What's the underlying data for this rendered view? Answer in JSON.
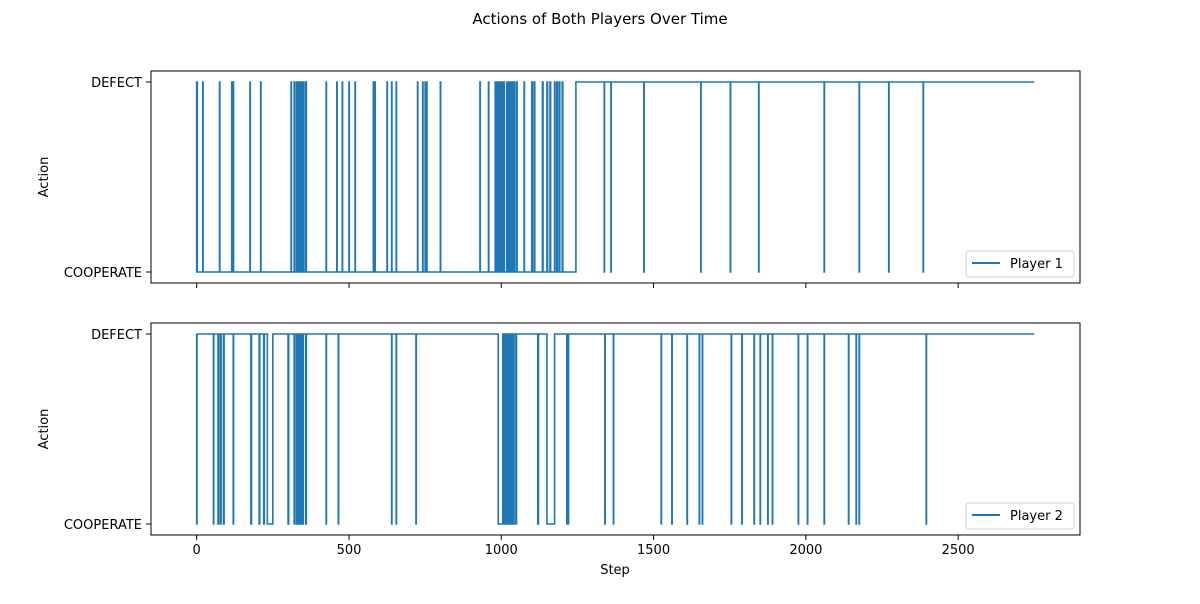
{
  "figure": {
    "title": "Actions of Both Players Over Time"
  },
  "colors": {
    "series": "#1f77b4",
    "background": "#ffffff",
    "axes": "#000000"
  },
  "chart_data": [
    {
      "type": "line",
      "title": "",
      "xlabel": "",
      "ylabel": "Action",
      "xlim": [
        -150,
        2900
      ],
      "x_ticks": [
        0,
        500,
        1000,
        1500,
        2000,
        2500
      ],
      "x_tick_labels_visible": false,
      "y_categories": [
        "COOPERATE",
        "DEFECT"
      ],
      "legend": {
        "entries": [
          "Player 1"
        ],
        "placement": "lower-right"
      },
      "grid": false,
      "series": [
        {
          "name": "Player 1",
          "drawstyle": "steps",
          "x_end": 2750,
          "initial": 1,
          "transitions": [
            [
              0,
              0
            ],
            [
              1,
              1
            ],
            [
              2,
              0
            ],
            [
              20,
              1
            ],
            [
              21,
              0
            ],
            [
              75,
              1
            ],
            [
              76,
              0
            ],
            [
              115,
              1
            ],
            [
              116,
              0
            ],
            [
              120,
              1
            ],
            [
              121,
              0
            ],
            [
              175,
              1
            ],
            [
              176,
              0
            ],
            [
              210,
              1
            ],
            [
              211,
              0
            ],
            [
              310,
              1
            ],
            [
              311,
              0
            ],
            [
              320,
              1
            ],
            [
              322,
              0
            ],
            [
              328,
              1
            ],
            [
              330,
              0
            ],
            [
              335,
              1
            ],
            [
              337,
              0
            ],
            [
              340,
              1
            ],
            [
              342,
              0
            ],
            [
              345,
              1
            ],
            [
              347,
              0
            ],
            [
              350,
              1
            ],
            [
              352,
              0
            ],
            [
              358,
              1
            ],
            [
              360,
              0
            ],
            [
              425,
              1
            ],
            [
              426,
              0
            ],
            [
              460,
              1
            ],
            [
              461,
              0
            ],
            [
              478,
              1
            ],
            [
              479,
              0
            ],
            [
              500,
              1
            ],
            [
              501,
              0
            ],
            [
              520,
              1
            ],
            [
              521,
              0
            ],
            [
              580,
              1
            ],
            [
              581,
              0
            ],
            [
              585,
              1
            ],
            [
              586,
              0
            ],
            [
              625,
              1
            ],
            [
              626,
              0
            ],
            [
              640,
              1
            ],
            [
              641,
              0
            ],
            [
              655,
              1
            ],
            [
              656,
              0
            ],
            [
              725,
              1
            ],
            [
              726,
              0
            ],
            [
              742,
              1
            ],
            [
              743,
              0
            ],
            [
              750,
              1
            ],
            [
              751,
              0
            ],
            [
              755,
              1
            ],
            [
              756,
              0
            ],
            [
              800,
              1
            ],
            [
              801,
              0
            ],
            [
              930,
              1
            ],
            [
              931,
              0
            ],
            [
              958,
              1
            ],
            [
              959,
              0
            ],
            [
              980,
              1
            ],
            [
              982,
              0
            ],
            [
              986,
              1
            ],
            [
              988,
              0
            ],
            [
              992,
              1
            ],
            [
              994,
              0
            ],
            [
              997,
              1
            ],
            [
              999,
              0
            ],
            [
              1002,
              1
            ],
            [
              1004,
              0
            ],
            [
              1008,
              1
            ],
            [
              1010,
              0
            ],
            [
              1018,
              1
            ],
            [
              1020,
              0
            ],
            [
              1024,
              1
            ],
            [
              1026,
              0
            ],
            [
              1030,
              1
            ],
            [
              1032,
              0
            ],
            [
              1036,
              1
            ],
            [
              1038,
              0
            ],
            [
              1042,
              1
            ],
            [
              1044,
              0
            ],
            [
              1050,
              1
            ],
            [
              1052,
              0
            ],
            [
              1075,
              1
            ],
            [
              1076,
              0
            ],
            [
              1100,
              1
            ],
            [
              1102,
              0
            ],
            [
              1108,
              1
            ],
            [
              1110,
              0
            ],
            [
              1135,
              1
            ],
            [
              1137,
              0
            ],
            [
              1150,
              1
            ],
            [
              1152,
              0
            ],
            [
              1160,
              1
            ],
            [
              1162,
              0
            ],
            [
              1175,
              1
            ],
            [
              1176,
              0
            ],
            [
              1182,
              1
            ],
            [
              1184,
              0
            ],
            [
              1190,
              1
            ],
            [
              1192,
              0
            ],
            [
              1200,
              1
            ],
            [
              1202,
              0
            ],
            [
              1245,
              1
            ],
            [
              1338,
              0
            ],
            [
              1339,
              1
            ],
            [
              1360,
              0
            ],
            [
              1361,
              1
            ],
            [
              1468,
              0
            ],
            [
              1469,
              1
            ],
            [
              1655,
              0
            ],
            [
              1656,
              1
            ],
            [
              1752,
              0
            ],
            [
              1753,
              1
            ],
            [
              1845,
              0
            ],
            [
              1846,
              1
            ],
            [
              2060,
              0
            ],
            [
              2061,
              1
            ],
            [
              2175,
              0
            ],
            [
              2176,
              1
            ],
            [
              2272,
              0
            ],
            [
              2273,
              1
            ],
            [
              2385,
              0
            ],
            [
              2386,
              1
            ]
          ]
        }
      ]
    },
    {
      "type": "line",
      "title": "",
      "xlabel": "Step",
      "ylabel": "Action",
      "xlim": [
        -150,
        2900
      ],
      "x_ticks": [
        0,
        500,
        1000,
        1500,
        2000,
        2500
      ],
      "x_tick_labels": [
        "0",
        "500",
        "1000",
        "1500",
        "2000",
        "2500"
      ],
      "y_categories": [
        "COOPERATE",
        "DEFECT"
      ],
      "legend": {
        "entries": [
          "Player 2"
        ],
        "placement": "lower-right"
      },
      "grid": false,
      "series": [
        {
          "name": "Player 2",
          "drawstyle": "steps",
          "x_end": 2750,
          "initial": 1,
          "transitions": [
            [
              0,
              0
            ],
            [
              1,
              1
            ],
            [
              55,
              0
            ],
            [
              56,
              1
            ],
            [
              70,
              0
            ],
            [
              72,
              1
            ],
            [
              78,
              0
            ],
            [
              80,
              1
            ],
            [
              88,
              0
            ],
            [
              90,
              1
            ],
            [
              120,
              0
            ],
            [
              121,
              1
            ],
            [
              178,
              0
            ],
            [
              180,
              1
            ],
            [
              205,
              0
            ],
            [
              207,
              1
            ],
            [
              220,
              0
            ],
            [
              222,
              1
            ],
            [
              232,
              0
            ],
            [
              250,
              1
            ],
            [
              300,
              0
            ],
            [
              302,
              1
            ],
            [
              320,
              0
            ],
            [
              322,
              1
            ],
            [
              328,
              0
            ],
            [
              330,
              1
            ],
            [
              335,
              0
            ],
            [
              337,
              1
            ],
            [
              342,
              0
            ],
            [
              344,
              1
            ],
            [
              348,
              0
            ],
            [
              350,
              1
            ],
            [
              358,
              0
            ],
            [
              360,
              1
            ],
            [
              425,
              0
            ],
            [
              426,
              1
            ],
            [
              465,
              0
            ],
            [
              466,
              1
            ],
            [
              640,
              0
            ],
            [
              641,
              1
            ],
            [
              655,
              0
            ],
            [
              656,
              1
            ],
            [
              720,
              0
            ],
            [
              721,
              1
            ],
            [
              990,
              0
            ],
            [
              1005,
              1
            ],
            [
              1010,
              0
            ],
            [
              1012,
              1
            ],
            [
              1015,
              0
            ],
            [
              1017,
              1
            ],
            [
              1020,
              0
            ],
            [
              1022,
              1
            ],
            [
              1025,
              0
            ],
            [
              1027,
              1
            ],
            [
              1030,
              0
            ],
            [
              1032,
              1
            ],
            [
              1035,
              0
            ],
            [
              1037,
              1
            ],
            [
              1040,
              0
            ],
            [
              1042,
              1
            ],
            [
              1048,
              0
            ],
            [
              1050,
              1
            ],
            [
              1120,
              0
            ],
            [
              1122,
              1
            ],
            [
              1150,
              0
            ],
            [
              1175,
              1
            ],
            [
              1215,
              0
            ],
            [
              1216,
              1
            ],
            [
              1220,
              0
            ],
            [
              1221,
              1
            ],
            [
              1340,
              0
            ],
            [
              1341,
              1
            ],
            [
              1368,
              0
            ],
            [
              1369,
              1
            ],
            [
              1525,
              0
            ],
            [
              1526,
              1
            ],
            [
              1560,
              0
            ],
            [
              1561,
              1
            ],
            [
              1610,
              0
            ],
            [
              1611,
              1
            ],
            [
              1650,
              0
            ],
            [
              1651,
              1
            ],
            [
              1660,
              0
            ],
            [
              1661,
              1
            ],
            [
              1755,
              0
            ],
            [
              1756,
              1
            ],
            [
              1790,
              0
            ],
            [
              1791,
              1
            ],
            [
              1830,
              0
            ],
            [
              1831,
              1
            ],
            [
              1850,
              0
            ],
            [
              1851,
              1
            ],
            [
              1875,
              0
            ],
            [
              1876,
              1
            ],
            [
              1890,
              0
            ],
            [
              1891,
              1
            ],
            [
              1975,
              0
            ],
            [
              1976,
              1
            ],
            [
              2005,
              0
            ],
            [
              2006,
              1
            ],
            [
              2060,
              0
            ],
            [
              2061,
              1
            ],
            [
              2140,
              0
            ],
            [
              2141,
              1
            ],
            [
              2165,
              0
            ],
            [
              2166,
              1
            ],
            [
              2175,
              0
            ],
            [
              2176,
              1
            ],
            [
              2395,
              0
            ],
            [
              2396,
              1
            ]
          ]
        }
      ]
    }
  ]
}
